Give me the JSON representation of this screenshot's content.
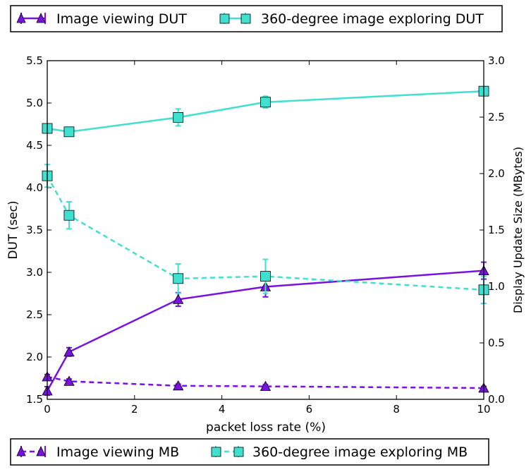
{
  "chart_data": {
    "type": "line",
    "xlabel": "packet loss rate (%)",
    "ylabel_left": "DUT (sec)",
    "ylabel_right": "Display Update Size (MBytes)",
    "xlim": [
      0,
      10
    ],
    "ylim_left": [
      1.5,
      5.5
    ],
    "ylim_right": [
      0.0,
      3.0
    ],
    "x_ticks": [
      "0",
      "2",
      "4",
      "6",
      "8",
      "10"
    ],
    "y_left_ticks": [
      "1.5",
      "2.0",
      "2.5",
      "3.0",
      "3.5",
      "4.0",
      "4.5",
      "5.0",
      "5.5"
    ],
    "y_right_ticks": [
      "0.0",
      "0.5",
      "1.0",
      "1.5",
      "2.0",
      "2.5",
      "3.0"
    ],
    "grid": false,
    "legend_top": [
      "Image viewing DUT",
      "360-degree image exploring DUT"
    ],
    "legend_bottom": [
      "Image viewing MB",
      "360-degree image exploring MB"
    ],
    "series": [
      {
        "name": "Image viewing DUT",
        "axis": "left",
        "style": "solid",
        "marker": "triangle",
        "color": "#7a10e2",
        "x": [
          0,
          0.5,
          3,
          5,
          10
        ],
        "y": [
          1.6,
          2.06,
          2.68,
          2.83,
          3.02
        ],
        "err": [
          0.05,
          0.05,
          0.08,
          0.12,
          0.1
        ]
      },
      {
        "name": "360-degree image exploring DUT",
        "axis": "left",
        "style": "solid",
        "marker": "square",
        "color": "#40e0d0",
        "x": [
          0,
          0.5,
          3,
          5,
          10
        ],
        "y": [
          4.7,
          4.66,
          4.83,
          5.01,
          5.14
        ],
        "err": [
          0.04,
          0.03,
          0.1,
          0.07,
          0.05
        ]
      },
      {
        "name": "Image viewing MB",
        "axis": "right",
        "style": "dashed",
        "marker": "triangle",
        "color": "#7a10e2",
        "x": [
          0,
          0.5,
          3,
          5,
          10
        ],
        "y": [
          0.2,
          0.16,
          0.12,
          0.115,
          0.1
        ],
        "err": [
          0.02,
          0.02,
          0.015,
          0.015,
          0.015
        ]
      },
      {
        "name": "360-degree image exploring MB",
        "axis": "right",
        "style": "dashed",
        "marker": "square",
        "color": "#40e0d0",
        "x": [
          0,
          0.5,
          3,
          5,
          10
        ],
        "y": [
          1.98,
          1.63,
          1.07,
          1.09,
          0.97
        ],
        "err": [
          0.1,
          0.12,
          0.13,
          0.15,
          0.12
        ]
      }
    ]
  }
}
